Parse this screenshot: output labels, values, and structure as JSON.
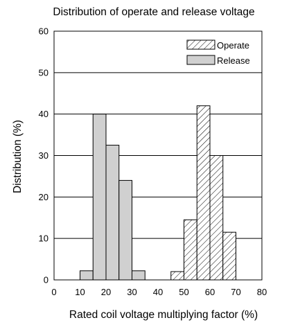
{
  "chart_data": {
    "type": "bar",
    "title": "Distribution of operate and release voltage",
    "xlabel": "Rated coil voltage multiplying factor (%)",
    "ylabel": "Distribution (%)",
    "xlim": [
      0,
      80
    ],
    "ylim": [
      0,
      60
    ],
    "xticks": [
      0,
      10,
      20,
      30,
      40,
      50,
      60,
      70,
      80
    ],
    "yticks": [
      0,
      10,
      20,
      30,
      40,
      50,
      60
    ],
    "grid": "horizontal",
    "legend_position": "top-right",
    "bin_width": 5,
    "series": [
      {
        "name": "Operate",
        "pattern": "diagonal-hatch",
        "color": "#ffffff",
        "bins": [
          {
            "x_start": 45,
            "x_end": 50,
            "value": 2
          },
          {
            "x_start": 50,
            "x_end": 55,
            "value": 14.5
          },
          {
            "x_start": 55,
            "x_end": 60,
            "value": 42
          },
          {
            "x_start": 60,
            "x_end": 65,
            "value": 30
          },
          {
            "x_start": 65,
            "x_end": 70,
            "value": 11.5
          }
        ]
      },
      {
        "name": "Release",
        "pattern": "solid",
        "color": "#d0d0d0",
        "bins": [
          {
            "x_start": 10,
            "x_end": 15,
            "value": 2.2
          },
          {
            "x_start": 15,
            "x_end": 20,
            "value": 40
          },
          {
            "x_start": 20,
            "x_end": 25,
            "value": 32.5
          },
          {
            "x_start": 25,
            "x_end": 30,
            "value": 24
          },
          {
            "x_start": 30,
            "x_end": 35,
            "value": 2.2
          }
        ]
      }
    ]
  }
}
